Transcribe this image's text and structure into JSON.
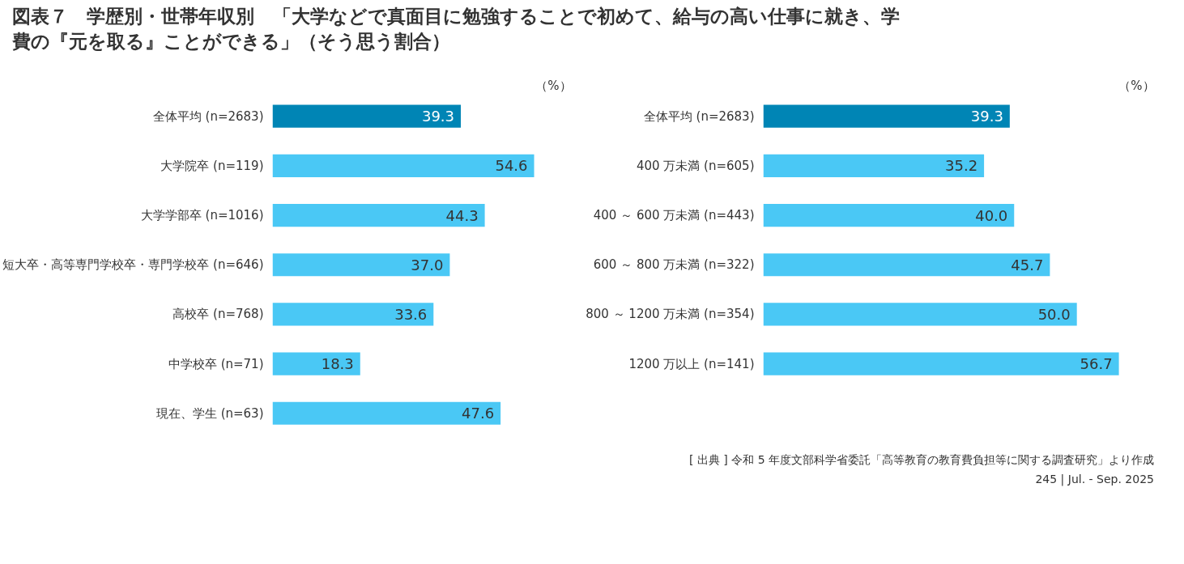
{
  "chart_data": [
    {
      "type": "bar",
      "orientation": "horizontal",
      "title": "図表７　学歴別・世帯年収別　「大学などで真面目に勉強することで初めて、給与の高い仕事に就き、学費の『元を取る』ことができる」（そう思う割合）",
      "categories": [
        "全体平均 (n=2683)",
        "大学院卒 (n=119)",
        "大学学部卒 (n=1016)",
        "短大卒・高等専門学校卒・専門学校卒 (n=646)",
        "高校卒 (n=768)",
        "中学校卒 (n=71)",
        "現在、学生 (n=63)"
      ],
      "values": [
        39.3,
        54.6,
        44.3,
        37.0,
        33.6,
        18.3,
        47.6
      ],
      "value_labels": [
        "39.3",
        "54.6",
        "44.3",
        "37.0",
        "33.6",
        "18.3",
        "47.6"
      ],
      "colors": [
        "#0085b5",
        "#4ac8f5",
        "#4ac8f5",
        "#4ac8f5",
        "#4ac8f5",
        "#4ac8f5",
        "#4ac8f5"
      ],
      "grid": false,
      "annotations": [
        "（%）"
      ]
    },
    {
      "type": "bar",
      "orientation": "horizontal",
      "categories": [
        "全体平均 (n=2683)",
        "400 万未満 (n=605)",
        "400 ～ 600 万未満 (n=443)",
        "600 ～ 800 万未満 (n=322)",
        "800 ～ 1200 万未満 (n=354)",
        "1200 万以上 (n=141)"
      ],
      "values": [
        39.3,
        35.2,
        40.0,
        45.7,
        50.0,
        56.7
      ],
      "value_labels": [
        "39.3",
        "35.2",
        "40.0",
        "45.7",
        "50.0",
        "56.7"
      ],
      "colors": [
        "#0085b5",
        "#4ac8f5",
        "#4ac8f5",
        "#4ac8f5",
        "#4ac8f5",
        "#4ac8f5"
      ],
      "grid": false,
      "annotations": [
        "（%）",
        "[ 出典 ] 令和 5 年度文部科学省委託「高等教育の教育費負担等に関する調査研究」より作成",
        "245 | Jul. - Sep. 2025"
      ]
    }
  ]
}
